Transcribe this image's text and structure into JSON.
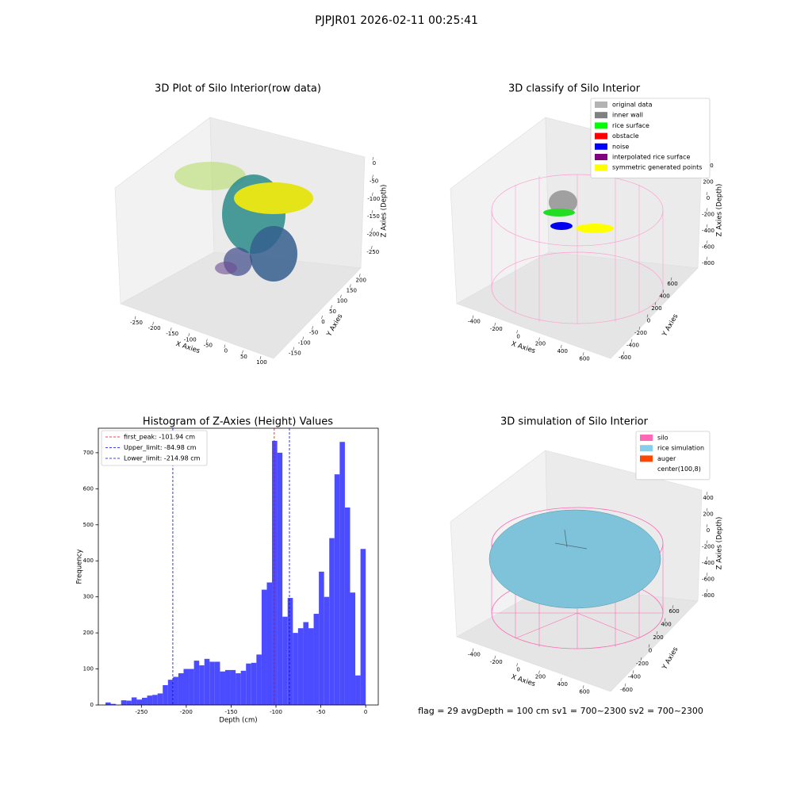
{
  "title": "PJPJR01 2026-02-11 00:25:41",
  "chart_data": [
    {
      "type": "scatter3d",
      "title": "3D Plot of Silo Interior(row data)",
      "xlabel": "X Axies",
      "ylabel": "Y Axies",
      "zlabel": "Z Axies (Depth)",
      "xlim": [
        -290,
        120
      ],
      "xticks": [
        -250,
        -200,
        -150,
        -100,
        -50,
        0,
        50,
        100
      ],
      "ylim": [
        -170,
        220
      ],
      "yticks": [
        -150,
        -100,
        -50,
        0,
        50,
        100,
        150,
        200
      ],
      "zlim": [
        -290,
        20
      ],
      "zticks": [
        0,
        -50,
        -100,
        -150,
        -200,
        -250
      ]
    },
    {
      "type": "scatter3d",
      "title": "3D classify of Silo Interior",
      "xlabel": "X Axies",
      "ylabel": "Y Axies",
      "zlabel": "Z Axies (Depth)",
      "xlim": [
        -500,
        700
      ],
      "xticks": [
        -400,
        -200,
        0,
        200,
        400,
        600
      ],
      "ylim": [
        -700,
        700
      ],
      "yticks": [
        -600,
        -400,
        -200,
        0,
        200,
        400,
        600
      ],
      "zlim": [
        -900,
        500
      ],
      "zticks": [
        400,
        200,
        0,
        -200,
        -400,
        -600,
        -800
      ],
      "legend": [
        {
          "name": "original data",
          "color": "#b3b3b3"
        },
        {
          "name": "inner wall",
          "color": "#808080"
        },
        {
          "name": "rice surface",
          "color": "#00ff00"
        },
        {
          "name": "obstacle",
          "color": "#ff0000"
        },
        {
          "name": "noise",
          "color": "#0000ff"
        },
        {
          "name": "interpolated rice surface",
          "color": "#800080"
        },
        {
          "name": "symmetric generated points",
          "color": "#ffff00"
        }
      ]
    },
    {
      "type": "histogram",
      "title": "Histogram of Z-Axies (Height) Values",
      "xlabel": "Depth (cm)",
      "ylabel": "Frequency",
      "color": "#4b4bff",
      "bins": [
        -290,
        -284.2,
        -278.4,
        -272.6,
        -266.8,
        -261,
        -255.2,
        -249.4,
        -243.6,
        -237.8,
        -232,
        -226.2,
        -220.4,
        -214.6,
        -208.8,
        -203,
        -197.2,
        -191.4,
        -185.6,
        -179.8,
        -174,
        -168.2,
        -162.4,
        -156.6,
        -150.8,
        -145,
        -139.2,
        -133.4,
        -127.6,
        -121.8,
        -116,
        -110.2,
        -104.4,
        -98.6,
        -92.8,
        -87,
        -81.2,
        -75.4,
        -69.6,
        -63.8,
        -58,
        -52.2,
        -46.4,
        -40.6,
        -34.8,
        -29,
        -23.2,
        -17.4,
        -11.6,
        -5.8,
        0
      ],
      "values": [
        7,
        3,
        0,
        13,
        12,
        21,
        15,
        20,
        26,
        28,
        32,
        55,
        70,
        78,
        88,
        100,
        100,
        123,
        110,
        128,
        120,
        120,
        93,
        97,
        97,
        88,
        95,
        115,
        117,
        140,
        320,
        340,
        733,
        700,
        245,
        297,
        200,
        213,
        230,
        213,
        253,
        370,
        300,
        463,
        640,
        730,
        548,
        312,
        82,
        433
      ],
      "xlim": [
        -298,
        14
      ],
      "xticks": [
        -250,
        -200,
        -150,
        -100,
        -50,
        0
      ],
      "ylim": [
        0,
        768
      ],
      "yticks": [
        0,
        100,
        200,
        300,
        400,
        500,
        600,
        700
      ],
      "lines": [
        {
          "name": "first_peak: -101.94 cm",
          "x": -101.94,
          "color": "#ff0000"
        },
        {
          "name": "Upper_limit: -84.98 cm",
          "x": -84.98,
          "color": "#0000ff"
        },
        {
          "name": "Lower_limit: -214.98 cm",
          "x": -214.98,
          "color": "#0000ff"
        }
      ]
    },
    {
      "type": "surface3d",
      "title": "3D simulation of Silo Interior",
      "xlabel": "X Axies",
      "ylabel": "Y Axies",
      "zlabel": "Z Axies (Depth)",
      "xlim": [
        -500,
        700
      ],
      "xticks": [
        -400,
        -200,
        0,
        200,
        400,
        600
      ],
      "ylim": [
        -700,
        700
      ],
      "yticks": [
        -600,
        -400,
        -200,
        0,
        200,
        400,
        600
      ],
      "zlim": [
        -900,
        500
      ],
      "zticks": [
        400,
        200,
        0,
        -200,
        -400,
        -600,
        -800
      ],
      "legend": [
        {
          "name": "silo",
          "color": "#ff69b4"
        },
        {
          "name": "rice simulation",
          "color": "#87ceeb"
        },
        {
          "name": "auger",
          "color": "#ff4500"
        },
        {
          "name": "center(100,8)",
          "color": "#ffffff"
        }
      ],
      "annotation": "flag = 29  avgDepth = 100 cm  sv1 = 700~2300  sv2 = 700~2300"
    }
  ]
}
